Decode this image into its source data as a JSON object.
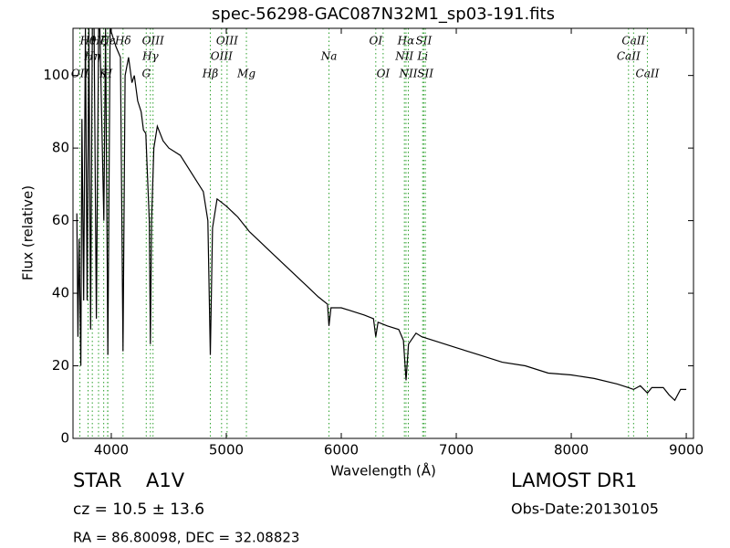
{
  "chart_data": {
    "type": "line",
    "title": "spec-56298-GAC087N32M1_sp03-191.fits",
    "xlabel": "Wavelength (Å)",
    "ylabel": "Flux (relative)",
    "color": "#000000",
    "annotation_color": "#2ca02c",
    "xlim": [
      3667,
      9063
    ],
    "ylim": [
      0,
      113
    ],
    "xticks": [
      4000,
      5000,
      6000,
      7000,
      8000,
      9000
    ],
    "yticks": [
      0,
      20,
      40,
      60,
      80,
      100
    ],
    "x": [
      3700,
      3710,
      3720,
      3735,
      3745,
      3760,
      3775,
      3790,
      3805,
      3820,
      3835,
      3850,
      3870,
      3890,
      3900,
      3935,
      3950,
      3970,
      3990,
      4040,
      4080,
      4102,
      4120,
      4150,
      4180,
      4200,
      4230,
      4260,
      4280,
      4300,
      4330,
      4340,
      4350,
      4370,
      4400,
      4450,
      4500,
      4600,
      4700,
      4800,
      4840,
      4861,
      4880,
      4920,
      5000,
      5100,
      5200,
      5300,
      5400,
      5500,
      5600,
      5700,
      5800,
      5880,
      5893,
      5910,
      6000,
      6100,
      6200,
      6280,
      6300,
      6320,
      6400,
      6500,
      6540,
      6563,
      6585,
      6650,
      6700,
      6800,
      7000,
      7200,
      7400,
      7600,
      7800,
      8000,
      8200,
      8400,
      8498,
      8542,
      8600,
      8662,
      8700,
      8800,
      8850,
      8900,
      8950,
      9000
    ],
    "values": [
      62,
      28,
      55,
      20,
      88,
      38,
      113,
      38,
      113,
      30,
      113,
      113,
      33,
      113,
      113,
      60,
      113,
      23,
      113,
      108,
      105,
      24,
      100,
      105,
      98,
      100,
      93,
      90,
      85,
      84,
      60,
      26,
      60,
      80,
      86,
      82,
      80,
      78,
      73,
      68,
      60,
      23,
      58,
      66,
      64,
      61,
      57,
      54,
      51,
      48,
      45,
      42,
      39,
      37,
      31,
      36,
      36,
      35,
      34,
      33,
      28,
      32,
      31,
      30,
      27,
      16,
      26,
      29,
      28,
      27,
      25,
      23,
      21,
      20,
      18,
      17.5,
      16.5,
      15,
      14,
      13.5,
      14.5,
      12.5,
      14,
      14,
      12,
      10.5,
      13.5,
      13.5
    ],
    "annotations": [
      [
        {
          "text": "Hθ",
          "x": 3798
        },
        {
          "text": "Hζ",
          "x": 3889
        },
        {
          "text": "Hε",
          "x": 3970
        },
        {
          "text": "Hδ",
          "x": 4102
        },
        {
          "text": "OIII",
          "x": 4363
        },
        {
          "text": "OIII",
          "x": 5007
        },
        {
          "text": "OI",
          "x": 6300
        },
        {
          "text": "Hα",
          "x": 6563
        },
        {
          "text": "SII",
          "x": 6717
        },
        {
          "text": "CaII",
          "x": 8542
        }
      ],
      [
        {
          "text": "Hη",
          "x": 3835
        },
        {
          "text": "Hγ",
          "x": 4340
        },
        {
          "text": "OIII",
          "x": 4959
        },
        {
          "text": "Na",
          "x": 5893
        },
        {
          "text": "NII",
          "x": 6549
        },
        {
          "text": "Li",
          "x": 6708
        },
        {
          "text": "CaII",
          "x": 8498
        }
      ],
      [
        {
          "text": "OII",
          "x": 3727
        },
        {
          "text": "K",
          "x": 3934
        },
        {
          "text": "H",
          "x": 3968
        },
        {
          "text": "G",
          "x": 4304
        },
        {
          "text": "Hβ",
          "x": 4861
        },
        {
          "text": "Mg",
          "x": 5175
        },
        {
          "text": "OI",
          "x": 6364
        },
        {
          "text": "NII",
          "x": 6583
        },
        {
          "text": "SII",
          "x": 6731
        },
        {
          "text": "CaII",
          "x": 8662
        }
      ]
    ],
    "footer": {
      "class": "STAR",
      "subclass": "A1V",
      "cz": "cz = 10.5 ± 13.6",
      "coords": "RA = 86.80098, DEC = 32.08823",
      "survey": "LAMOST DR1",
      "date": "Obs-Date:20130105"
    }
  }
}
